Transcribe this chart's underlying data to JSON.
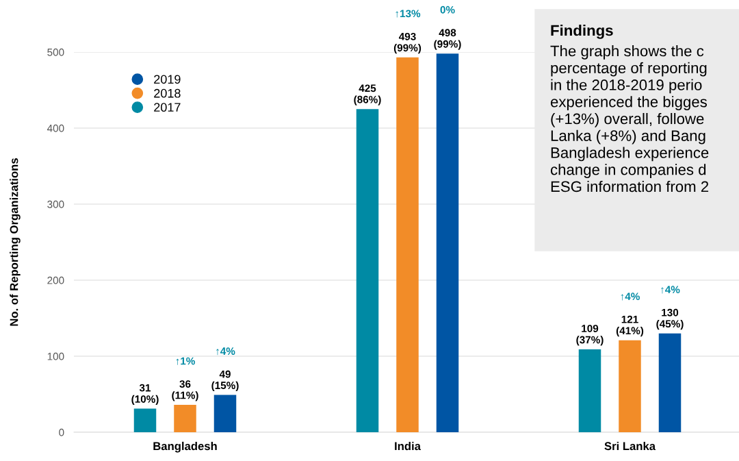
{
  "chart_data": {
    "type": "bar",
    "ylabel": "No. of Reporting Organizations",
    "categories": [
      "Bangladesh",
      "India",
      "Sri Lanka"
    ],
    "series": [
      {
        "name": "2017",
        "color": "#008aa4",
        "values": [
          31,
          425,
          109
        ],
        "value_labels": [
          "31\n(10%)",
          "425\n(86%)",
          "109\n(37%)"
        ]
      },
      {
        "name": "2018",
        "color": "#f28c28",
        "values": [
          36,
          493,
          121
        ],
        "value_labels": [
          "36\n(11%)",
          "493\n(99%)",
          "121\n(41%)"
        ]
      },
      {
        "name": "2019",
        "color": "#0055a4",
        "values": [
          49,
          498,
          130
        ],
        "value_labels": [
          "49\n(15%)",
          "498\n(99%)",
          "130\n(45%)"
        ]
      }
    ],
    "ylim": [
      0,
      500
    ],
    "yticks": [
      0,
      100,
      200,
      300,
      400,
      500
    ],
    "grid": "y",
    "legend": "top left",
    "annotations": [
      "↑1%",
      "↑4%",
      "↑13%",
      "0%",
      "↑4%",
      "↑4%",
      "Findings",
      "The graph shows the c\npercentage of reporting\nin the 2018-2019 perio\nexperienced the bigges\n(+13%) overall, followe\nLanka (+8%) and Bang\nBangladesh experience\nchange in companies d\nESG information from 2"
    ]
  }
}
